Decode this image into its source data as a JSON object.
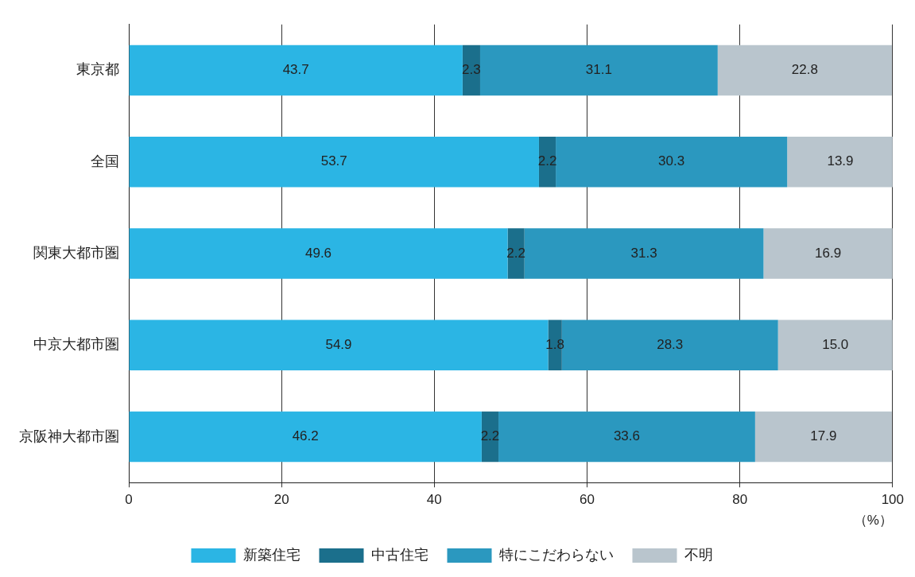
{
  "chart_data": {
    "type": "bar",
    "orientation": "horizontal",
    "stacked": true,
    "categories": [
      "東京都",
      "全国",
      "関東大都市圏",
      "中京大都市圏",
      "京阪神大都市圏"
    ],
    "series": [
      {
        "name": "新築住宅",
        "color": "#2bb5e4",
        "values": [
          43.7,
          53.7,
          49.6,
          54.9,
          46.2
        ],
        "value_labels": [
          "43.7",
          "53.7",
          "49.6",
          "54.9",
          "46.2"
        ]
      },
      {
        "name": "中古住宅",
        "color": "#1b6f8c",
        "values": [
          2.3,
          2.2,
          2.2,
          1.8,
          2.2
        ],
        "value_labels": [
          "2.3",
          "2.2",
          "2.2",
          "1.8",
          "2.2"
        ]
      },
      {
        "name": "特にこだわらない",
        "color": "#2b98bf",
        "values": [
          31.1,
          30.3,
          31.3,
          28.3,
          33.6
        ],
        "value_labels": [
          "31.1",
          "30.3",
          "31.3",
          "28.3",
          "33.6"
        ]
      },
      {
        "name": "不明",
        "color": "#b9c5cd",
        "values": [
          22.8,
          13.9,
          16.9,
          15.0,
          17.9
        ],
        "value_labels": [
          "22.8",
          "13.9",
          "16.9",
          "15.0",
          "17.9"
        ]
      }
    ],
    "xlim": [
      0,
      100
    ],
    "xticks": [
      0,
      20,
      40,
      60,
      80,
      100
    ],
    "xlabel": "（%）",
    "grid": "x",
    "legend": "bottom"
  }
}
